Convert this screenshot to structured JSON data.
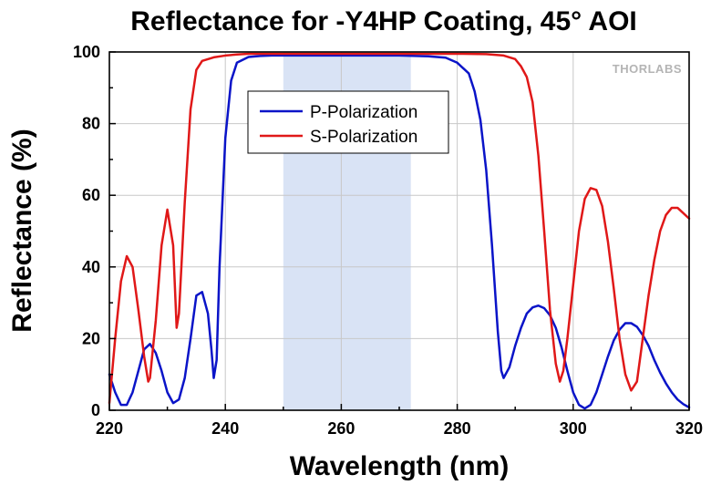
{
  "chart_data": {
    "type": "line",
    "title": "Reflectance for -Y4HP Coating, 45° AOI",
    "xlabel": "Wavelength (nm)",
    "ylabel": "Reflectance (%)",
    "xlim": [
      220,
      320
    ],
    "ylim": [
      0,
      100
    ],
    "xticks": [
      220,
      240,
      260,
      280,
      300,
      320
    ],
    "yticks": [
      0,
      20,
      40,
      60,
      80,
      100
    ],
    "grid": true,
    "legend_position": "top-left inside",
    "highlight_band": {
      "x": [
        250,
        272
      ],
      "color": "#d9e3f5"
    },
    "logo": "THORLABS",
    "series": [
      {
        "name": "P-Polarization",
        "color": "#0a14c8",
        "x": [
          220,
          221,
          222,
          223,
          224,
          225,
          226,
          227,
          228,
          229,
          230,
          231,
          232,
          233,
          234,
          235,
          236,
          237,
          237.6,
          238,
          238.5,
          239,
          240,
          241,
          242,
          244,
          246,
          248,
          250,
          255,
          260,
          265,
          270,
          275,
          278,
          280,
          282,
          283,
          284,
          285,
          286,
          287,
          287.6,
          288,
          289,
          290,
          291,
          292,
          293,
          294,
          295,
          296,
          297,
          298,
          299,
          300,
          301,
          302,
          303,
          304,
          305,
          306,
          307,
          308,
          309,
          310,
          311,
          312,
          313,
          314,
          315,
          316,
          317,
          318,
          319,
          320
        ],
        "y": [
          10,
          5,
          1.5,
          1.5,
          5,
          11,
          17,
          18.5,
          16,
          11,
          5,
          2,
          3,
          9,
          20,
          32,
          33,
          27,
          17,
          9,
          14,
          40,
          76,
          92,
          97,
          98.6,
          98.9,
          99,
          99,
          99,
          99,
          99,
          99,
          98.8,
          98.4,
          97,
          94,
          89,
          81,
          67,
          46,
          22,
          11,
          9,
          12,
          18,
          23,
          27,
          28.7,
          29.2,
          28.5,
          26.5,
          23,
          17.5,
          11,
          5,
          1.5,
          0.5,
          1.5,
          5,
          10,
          15,
          19.5,
          22.5,
          24.3,
          24.3,
          23.3,
          21,
          18,
          14,
          10.5,
          7.5,
          5,
          3,
          1.7,
          0.8
        ]
      },
      {
        "name": "S-Polarization",
        "color": "#e01818",
        "x": [
          220,
          221,
          222,
          223,
          224,
          225,
          226,
          226.7,
          227,
          228,
          229,
          230,
          231,
          231.6,
          232,
          233,
          234,
          235,
          236,
          238,
          240,
          242,
          244,
          246,
          248,
          250,
          255,
          260,
          270,
          280,
          285,
          288,
          290,
          291,
          292,
          293,
          294,
          295,
          296,
          297,
          297.7,
          298.3,
          299,
          300,
          301,
          302,
          303,
          304,
          305,
          306,
          307,
          308,
          309,
          310,
          311,
          312,
          313,
          314,
          315,
          316,
          317,
          318,
          319,
          320
        ],
        "y": [
          2,
          20,
          36,
          43,
          40,
          28,
          15,
          8,
          9,
          25,
          46,
          56,
          46,
          23,
          27,
          58,
          84,
          95,
          97.5,
          98.5,
          99,
          99.3,
          99.5,
          99.5,
          99.5,
          99.5,
          99.5,
          99.5,
          99.5,
          99.5,
          99.4,
          99,
          98,
          96,
          93,
          86,
          71,
          50,
          28,
          13,
          8,
          11,
          20,
          35,
          50,
          59,
          62,
          61.5,
          57,
          47,
          34,
          20,
          10,
          5.5,
          8,
          20,
          32,
          42,
          50,
          54.5,
          56.5,
          56.5,
          55,
          53.5
        ]
      }
    ]
  }
}
